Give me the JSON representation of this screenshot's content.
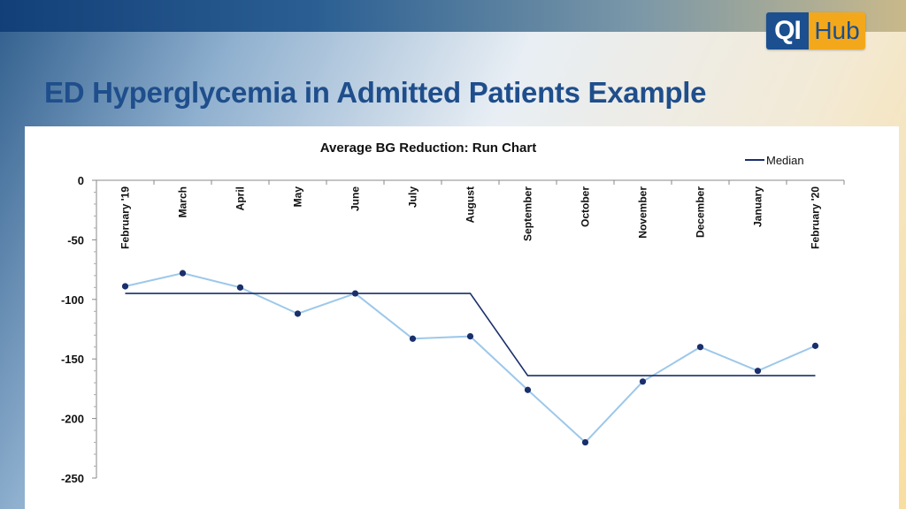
{
  "logo": {
    "left": "QI",
    "right": "Hub"
  },
  "page_title": "ED Hyperglycemia in Admitted Patients Example",
  "chart_data": {
    "type": "line",
    "title": "Average BG Reduction: Run Chart",
    "xlabel": "",
    "ylabel": "",
    "ylim": [
      -250,
      0
    ],
    "yticks": [
      0,
      -50,
      -100,
      -150,
      -200,
      -250
    ],
    "yticks_labels": [
      "0",
      "-50",
      "-100",
      "-150",
      "-200",
      "-250"
    ],
    "categories": [
      "February '19",
      "March",
      "April",
      "May",
      "June",
      "July",
      "August",
      "September",
      "October",
      "November",
      "December",
      "January",
      "February '20"
    ],
    "legend_position": "top-right",
    "series": [
      {
        "values": [
          -89,
          -78,
          -90,
          -112,
          -95,
          -133,
          -131,
          -176,
          -220,
          -169,
          -140,
          -160,
          -139
        ],
        "color": "#9dc8ea",
        "marker_color": "#1a2f6b"
      },
      {
        "name": "Median",
        "values": [
          -95,
          -95,
          -95,
          -95,
          -95,
          -95,
          -95,
          -164,
          -164,
          -164,
          -164,
          -164,
          -164
        ],
        "color": "#1a2f6b"
      }
    ],
    "grid": false
  }
}
